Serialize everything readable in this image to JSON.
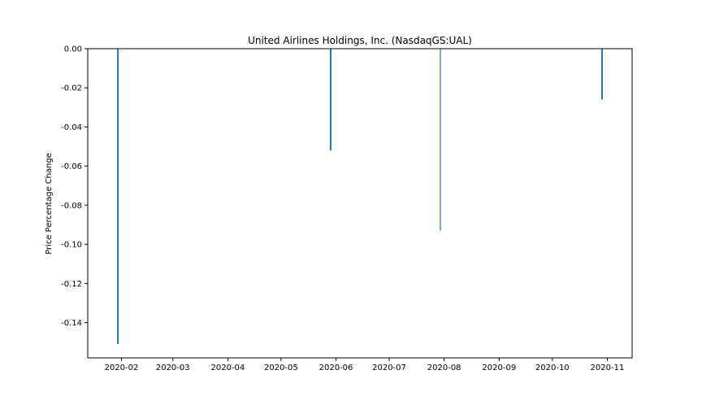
{
  "chart_data": {
    "type": "bar",
    "title": "United Airlines Holdings, Inc. (NasdaqGS:UAL)",
    "xlabel": "",
    "ylabel": "Price Percentage Change",
    "x_ticks": [
      "2020-02",
      "2020-03",
      "2020-04",
      "2020-05",
      "2020-06",
      "2020-07",
      "2020-08",
      "2020-09",
      "2020-10",
      "2020-11"
    ],
    "y_ticks": [
      "0.00",
      "-0.02",
      "-0.04",
      "-0.06",
      "-0.08",
      "-0.10",
      "-0.12",
      "-0.14"
    ],
    "ylim": [
      -0.158,
      0.0
    ],
    "xlim": [
      "2020-01-13",
      "2020-11-15"
    ],
    "points": [
      {
        "date": "2020-01-30",
        "value": -0.151
      },
      {
        "date": "2020-05-29",
        "value": -0.052
      },
      {
        "date": "2020-07-30",
        "value": -0.093
      },
      {
        "date": "2020-10-29",
        "value": -0.026
      }
    ],
    "bar_color": "#1f77b4",
    "grid": false,
    "legend": "none"
  }
}
